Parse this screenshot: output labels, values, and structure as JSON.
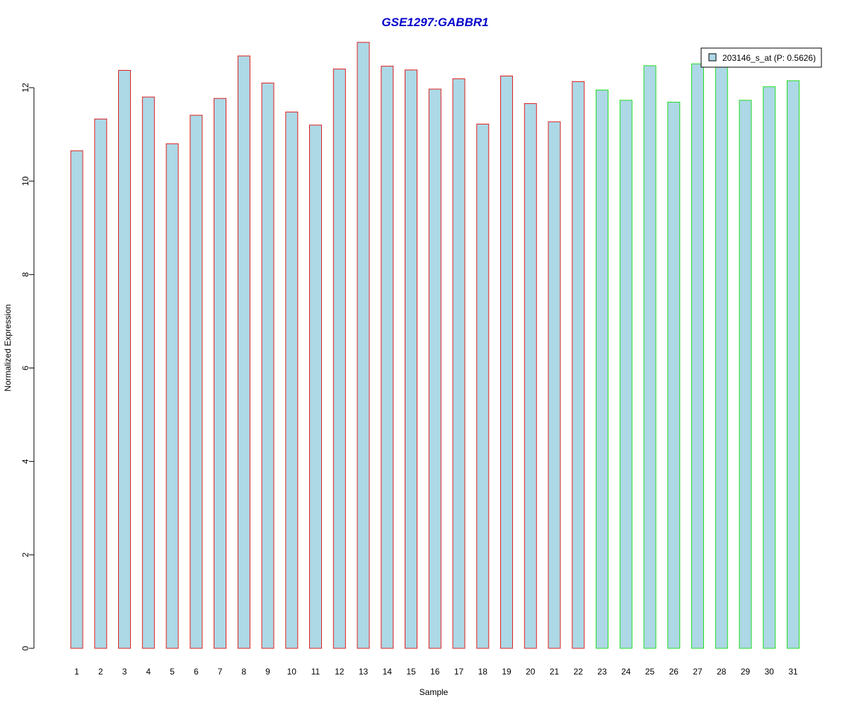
{
  "chart_data": {
    "type": "bar",
    "title": "GSE1297:GABBR1",
    "xlabel": "Sample",
    "ylabel": "Normalized Expression",
    "ylim": [
      0,
      13
    ],
    "yticks": [
      0,
      2,
      4,
      6,
      8,
      10,
      12
    ],
    "categories": [
      "1",
      "2",
      "3",
      "4",
      "5",
      "6",
      "7",
      "8",
      "9",
      "10",
      "11",
      "12",
      "13",
      "14",
      "15",
      "16",
      "17",
      "18",
      "19",
      "20",
      "21",
      "22",
      "23",
      "24",
      "25",
      "26",
      "27",
      "28",
      "29",
      "30",
      "31"
    ],
    "values": [
      10.65,
      11.33,
      12.37,
      11.8,
      10.8,
      11.41,
      11.77,
      12.68,
      12.1,
      11.48,
      11.2,
      12.4,
      12.97,
      12.46,
      12.38,
      11.97,
      12.19,
      11.22,
      12.25,
      11.66,
      11.27,
      12.13,
      11.95,
      11.73,
      12.47,
      11.69,
      12.51,
      12.49,
      11.73,
      12.02,
      12.15
    ],
    "group": [
      "A",
      "A",
      "A",
      "A",
      "A",
      "A",
      "A",
      "A",
      "A",
      "A",
      "A",
      "A",
      "A",
      "A",
      "A",
      "A",
      "A",
      "A",
      "A",
      "A",
      "A",
      "A",
      "B",
      "B",
      "B",
      "B",
      "B",
      "B",
      "B",
      "B",
      "B"
    ],
    "colors": {
      "fill": "#add8e6",
      "border_A": "#e0201f",
      "border_B": "#22dd22",
      "title": "#0000cc"
    },
    "legend": {
      "label": "203146_s_at (P: 0.5626)",
      "position": "top-right"
    },
    "grid": false
  }
}
